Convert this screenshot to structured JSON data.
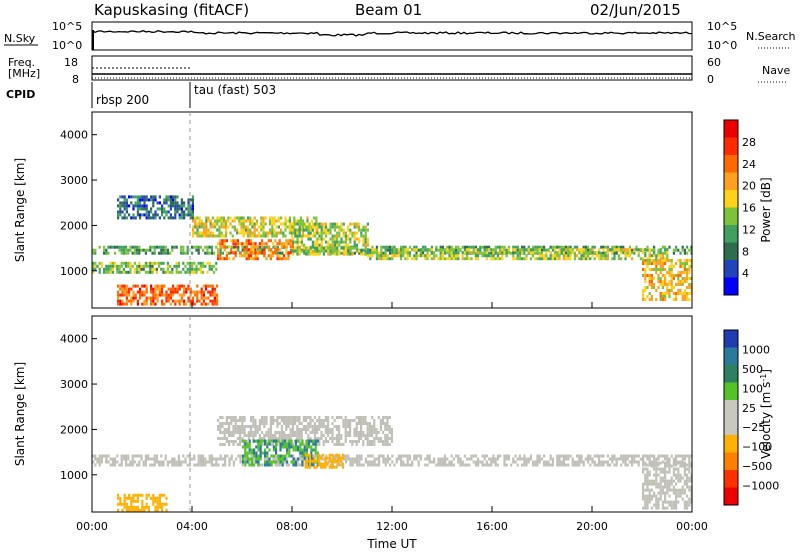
{
  "header": {
    "station": "Kapuskasing (fitACF)",
    "beam": "Beam 01",
    "date": "02/Jun/2015"
  },
  "top_panel": {
    "nsky_label": "N.Sky",
    "nsky_ticks": [
      "10^5",
      "10^0"
    ],
    "nsearch_label": "N.Search",
    "nsearch_ticks": [
      "10^5",
      "10^0"
    ],
    "freq_label_line1": "Freq.",
    "freq_label_line2": "[MHz]",
    "freq_ticks": [
      "18",
      "8"
    ],
    "nave_label": "Nave",
    "nave_ticks": [
      "60",
      "0"
    ],
    "cpid_label": "CPID",
    "cpid_segments": [
      {
        "name": "rbsp 200",
        "start_hour": 0,
        "end_hour": 4
      },
      {
        "name": "tau (fast) 503",
        "start_hour": 4,
        "end_hour": 24
      }
    ]
  },
  "colors": {
    "power_scale": [
      "#0000ff",
      "#2244bb",
      "#2e6e4e",
      "#3fa060",
      "#7dc23a",
      "#ffd21a",
      "#ffa020",
      "#ff6a00",
      "#ff2a00",
      "#ee0000"
    ],
    "velocity_scale": [
      "#1f3cb0",
      "#2a7a9a",
      "#2e8060",
      "#55c22a",
      "#c8c8c0",
      "#c8c8c0",
      "#ffb000",
      "#ff8000",
      "#ff3000",
      "#ee0000"
    ],
    "ground_scatter": "#c0c0b8"
  },
  "chart_data": [
    {
      "type": "heatmap",
      "name_panel": "power",
      "ylabel": "Slant Range [km]",
      "xlabel": "",
      "x_range_hours": [
        0,
        24
      ],
      "ylim": [
        180,
        4500
      ],
      "y_ticks": [
        "1000",
        "2000",
        "3000",
        "4000"
      ],
      "colorbar_label": "Power [dB]",
      "colorbar_ticks": [
        "4",
        "8",
        "12",
        "16",
        "20",
        "24",
        "28"
      ],
      "colorbar_range": [
        0,
        30
      ],
      "bands": [
        {
          "t0": 0.0,
          "t1": 24.0,
          "r0": 1420,
          "r1": 1560,
          "power": 10
        },
        {
          "t0": 0.0,
          "t1": 5.0,
          "r0": 1000,
          "r1": 1250,
          "power": 12
        },
        {
          "t0": 5.0,
          "t1": 8.0,
          "r0": 1300,
          "r1": 1700,
          "power": 22
        },
        {
          "t0": 4.0,
          "t1": 9.0,
          "r0": 1800,
          "r1": 2200,
          "power": 16
        },
        {
          "t0": 1.0,
          "t1": 4.0,
          "r0": 2200,
          "r1": 2700,
          "power": 6
        },
        {
          "t0": 1.0,
          "t1": 5.0,
          "r0": 300,
          "r1": 700,
          "power": 24
        },
        {
          "t0": 8.0,
          "t1": 11.0,
          "r0": 1400,
          "r1": 2100,
          "power": 14
        },
        {
          "t0": 11.0,
          "t1": 23.0,
          "r0": 1300,
          "r1": 1550,
          "power": 14
        },
        {
          "t0": 22.0,
          "t1": 24.0,
          "r0": 400,
          "r1": 1300,
          "power": 18
        }
      ]
    },
    {
      "type": "heatmap",
      "name_panel": "velocity",
      "ylabel": "Slant Range [km]",
      "xlabel": "Time UT",
      "x_ticks": [
        "00:00",
        "04:00",
        "08:00",
        "12:00",
        "16:00",
        "20:00",
        "00:00"
      ],
      "x_range_hours": [
        0,
        24
      ],
      "ylim": [
        180,
        4500
      ],
      "y_ticks": [
        "1000",
        "2000",
        "3000",
        "4000"
      ],
      "colorbar_label": "Velocity [m s^-1]",
      "colorbar_ticks": [
        "1000",
        "500",
        "100",
        "25",
        "−25",
        "−100",
        "−500",
        "−1000"
      ],
      "bands": [
        {
          "t0": 0.0,
          "t1": 24.0,
          "r0": 1250,
          "r1": 1500,
          "velocity": "ground"
        },
        {
          "t0": 5.0,
          "t1": 12.0,
          "r0": 1700,
          "r1": 2300,
          "velocity": "ground"
        },
        {
          "t0": 6.0,
          "t1": 9.0,
          "r0": 1250,
          "r1": 1800,
          "velocity": 300
        },
        {
          "t0": 1.0,
          "t1": 3.0,
          "r0": 250,
          "r1": 600,
          "velocity": -150
        },
        {
          "t0": 8.5,
          "t1": 10.0,
          "r0": 1200,
          "r1": 1500,
          "velocity": -150
        },
        {
          "t0": 22.0,
          "t1": 24.0,
          "r0": 300,
          "r1": 1300,
          "velocity": "ground"
        }
      ]
    }
  ]
}
